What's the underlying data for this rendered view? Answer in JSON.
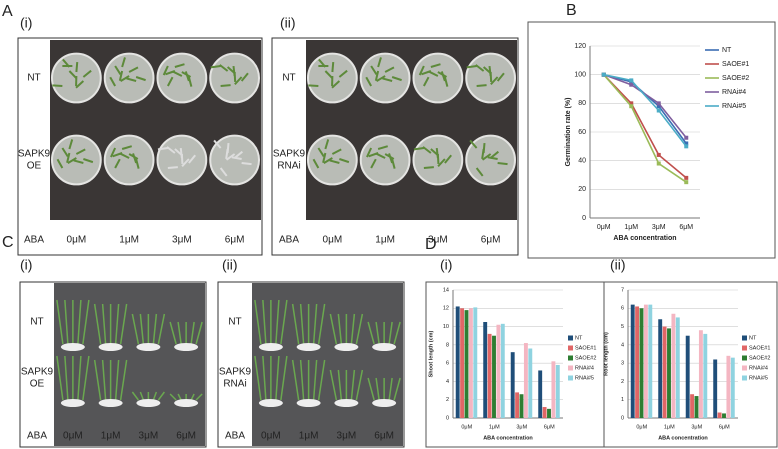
{
  "panels": {
    "A": "A",
    "B": "B",
    "C": "C",
    "D": "D"
  },
  "photos": [
    {
      "tag": "(i)",
      "rows": [
        [
          "NT"
        ],
        [
          "SAPK9",
          "OE"
        ]
      ],
      "aba": "ABA",
      "conc": [
        "0μM",
        "1μM",
        "3μM",
        "6μM"
      ]
    },
    {
      "tag": "(ii)",
      "rows": [
        [
          "NT"
        ],
        [
          "SAPK9",
          "RNAi"
        ]
      ],
      "aba": "ABA",
      "conc": [
        "0μM",
        "1μM",
        "3μM",
        "6μM"
      ]
    },
    {
      "tag": "(i)",
      "rows": [
        [
          "NT"
        ],
        [
          "SAPK9",
          "OE"
        ]
      ],
      "aba": "ABA",
      "conc": [
        "0μM",
        "1μM",
        "3μM",
        "6μM"
      ]
    },
    {
      "tag": "(ii)",
      "rows": [
        [
          "NT"
        ],
        [
          "SAPK9",
          "RNAi"
        ]
      ],
      "aba": "ABA",
      "conc": [
        "0μM",
        "1μM",
        "3μM",
        "6μM"
      ]
    }
  ],
  "chart_data": [
    {
      "type": "line",
      "ylabel": "Germination rate (%)",
      "xlabel": "ABA concentration",
      "categories": [
        "0μM",
        "1μM",
        "3μM",
        "6μM"
      ],
      "ylim": [
        0,
        120
      ],
      "yticks": [
        0,
        20,
        40,
        60,
        80,
        100,
        120
      ],
      "series": [
        {
          "name": "NT",
          "color": "#3b6db3",
          "values": [
            100,
            95,
            78,
            52
          ]
        },
        {
          "name": "SAOE#1",
          "color": "#c0504d",
          "values": [
            100,
            80,
            44,
            28
          ]
        },
        {
          "name": "SAOE#2",
          "color": "#9bbb59",
          "values": [
            100,
            78,
            38,
            25
          ]
        },
        {
          "name": "RNAi#4",
          "color": "#7f5f9f",
          "values": [
            100,
            93,
            80,
            56
          ]
        },
        {
          "name": "RNAi#5",
          "color": "#4bacc6",
          "values": [
            100,
            96,
            75,
            50
          ]
        }
      ]
    },
    {
      "type": "bar",
      "tag": "(i)",
      "ylabel": "Shoot length (cm)",
      "xlabel": "ABA concentration",
      "categories": [
        "0μM",
        "1μM",
        "3μM",
        "6μM"
      ],
      "ylim": [
        0,
        14
      ],
      "yticks": [
        0,
        2,
        4,
        6,
        8,
        10,
        12,
        14
      ],
      "series": [
        {
          "name": "NT",
          "color": "#1f4e79",
          "values": [
            12.2,
            10.5,
            7.2,
            5.2
          ]
        },
        {
          "name": "SAOE#1",
          "color": "#e06666",
          "values": [
            12,
            9.2,
            2.8,
            1.2
          ]
        },
        {
          "name": "SAOE#2",
          "color": "#2e7d32",
          "values": [
            11.8,
            9,
            2.6,
            1
          ]
        },
        {
          "name": "RNAi#4",
          "color": "#f4b6c2",
          "values": [
            12,
            10.2,
            8.2,
            6.2
          ]
        },
        {
          "name": "RNAi#5",
          "color": "#8fd3e0",
          "values": [
            12.1,
            10.3,
            7.6,
            5.8
          ]
        }
      ]
    },
    {
      "type": "bar",
      "tag": "(ii)",
      "ylabel": "Root length (cm)",
      "xlabel": "ABA concentration",
      "categories": [
        "0μM",
        "1μM",
        "3μM",
        "6μM"
      ],
      "ylim": [
        0,
        7
      ],
      "yticks": [
        0,
        1,
        2,
        3,
        4,
        5,
        6,
        7
      ],
      "series": [
        {
          "name": "NT",
          "color": "#1f4e79",
          "values": [
            6.2,
            5.4,
            4.5,
            3.2
          ]
        },
        {
          "name": "SAOE#1",
          "color": "#e06666",
          "values": [
            6.1,
            5,
            1.3,
            0.3
          ]
        },
        {
          "name": "SAOE#2",
          "color": "#2e7d32",
          "values": [
            6,
            4.9,
            1.2,
            0.25
          ]
        },
        {
          "name": "RNAi#4",
          "color": "#f4b6c2",
          "values": [
            6.2,
            5.7,
            4.8,
            3.4
          ]
        },
        {
          "name": "RNAi#5",
          "color": "#8fd3e0",
          "values": [
            6.2,
            5.5,
            4.6,
            3.3
          ]
        }
      ]
    }
  ]
}
